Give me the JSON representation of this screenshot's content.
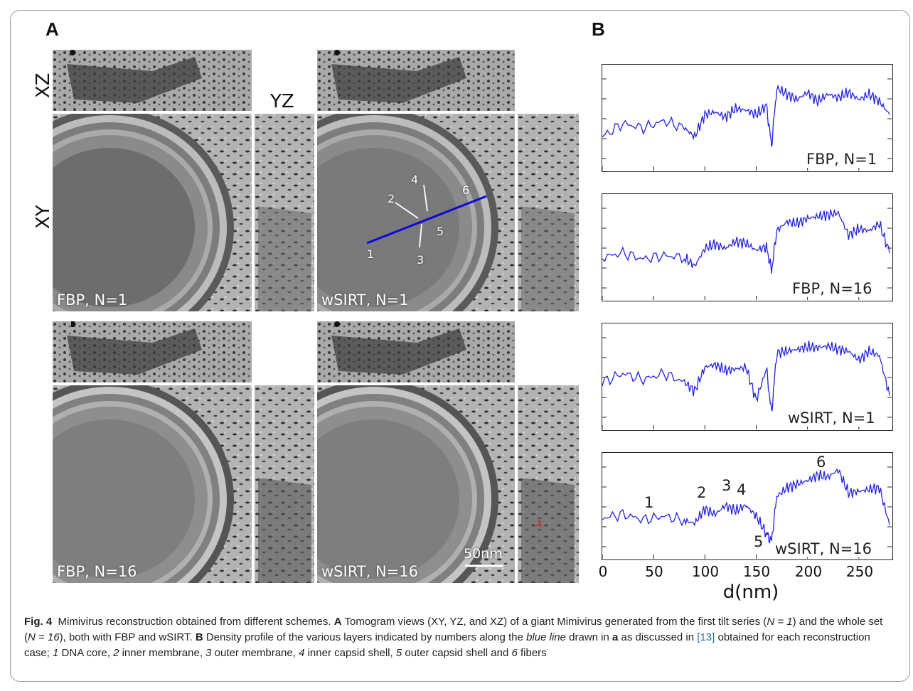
{
  "panel_a": {
    "letter": "A",
    "axis_xz": "XZ",
    "axis_yz": "YZ",
    "axis_xy": "XY",
    "label_fbp1": "FBP, N=1",
    "label_wsirt1": "wSIRT, N=1",
    "label_fbp16": "FBP, N=16",
    "label_wsirt16": "wSIRT, N=16",
    "scale_bar": "50nm",
    "markers": [
      "1",
      "2",
      "3",
      "4",
      "5",
      "6"
    ]
  },
  "panel_b": {
    "letter": "B",
    "plot_labels": [
      "FBP, N=1",
      "FBP, N=16",
      "wSIRT, N=1",
      "wSIRT, N=16"
    ],
    "peak_labels": [
      "1",
      "2",
      "3",
      "4",
      "5",
      "6"
    ],
    "xlabel": "d(nm)",
    "xticks": [
      "0",
      "50",
      "100",
      "150",
      "200",
      "250"
    ]
  },
  "chart_data": {
    "type": "line",
    "xlabel": "d(nm)",
    "xlim": [
      0,
      282
    ],
    "xticks": [
      0,
      50,
      100,
      150,
      200,
      250
    ],
    "series_color": "#2323e0",
    "series": [
      {
        "name": "FBP, N=1",
        "x": [
          0,
          20,
          40,
          60,
          80,
          90,
          100,
          110,
          120,
          130,
          140,
          150,
          160,
          165,
          170,
          180,
          190,
          200,
          210,
          220,
          230,
          240,
          250,
          260,
          270,
          280
        ],
        "values": [
          0.3,
          0.45,
          0.4,
          0.48,
          0.4,
          0.3,
          0.55,
          0.58,
          0.52,
          0.62,
          0.6,
          0.55,
          0.65,
          0.2,
          0.85,
          0.78,
          0.72,
          0.8,
          0.7,
          0.78,
          0.74,
          0.8,
          0.72,
          0.78,
          0.7,
          0.55
        ]
      },
      {
        "name": "FBP, N=16",
        "x": [
          0,
          20,
          40,
          60,
          80,
          90,
          100,
          110,
          120,
          130,
          140,
          150,
          160,
          165,
          170,
          180,
          190,
          200,
          210,
          220,
          230,
          240,
          250,
          260,
          270,
          280
        ],
        "values": [
          0.4,
          0.45,
          0.38,
          0.42,
          0.4,
          0.3,
          0.5,
          0.55,
          0.5,
          0.58,
          0.56,
          0.48,
          0.52,
          0.25,
          0.7,
          0.8,
          0.78,
          0.84,
          0.86,
          0.88,
          0.9,
          0.65,
          0.72,
          0.7,
          0.78,
          0.45
        ]
      },
      {
        "name": "wSIRT, N=1",
        "x": [
          0,
          20,
          40,
          60,
          80,
          90,
          100,
          110,
          120,
          130,
          140,
          150,
          160,
          165,
          170,
          180,
          190,
          200,
          210,
          220,
          230,
          240,
          250,
          260,
          270,
          280
        ],
        "values": [
          0.45,
          0.55,
          0.48,
          0.55,
          0.45,
          0.35,
          0.62,
          0.65,
          0.58,
          0.6,
          0.62,
          0.25,
          0.6,
          0.1,
          0.78,
          0.8,
          0.82,
          0.85,
          0.84,
          0.86,
          0.82,
          0.8,
          0.7,
          0.8,
          0.75,
          0.3
        ]
      },
      {
        "name": "wSIRT, N=16",
        "x": [
          0,
          20,
          40,
          60,
          80,
          90,
          100,
          110,
          120,
          130,
          140,
          150,
          160,
          165,
          170,
          180,
          190,
          200,
          210,
          220,
          230,
          240,
          250,
          260,
          270,
          280
        ],
        "values": [
          0.38,
          0.42,
          0.36,
          0.4,
          0.35,
          0.32,
          0.48,
          0.42,
          0.52,
          0.46,
          0.52,
          0.4,
          0.2,
          0.12,
          0.62,
          0.72,
          0.76,
          0.8,
          0.86,
          0.84,
          0.92,
          0.66,
          0.68,
          0.7,
          0.72,
          0.3
        ]
      }
    ],
    "annotations": [
      {
        "text": "1",
        "x": 45
      },
      {
        "text": "2",
        "x": 97
      },
      {
        "text": "3",
        "x": 124
      },
      {
        "text": "4",
        "x": 138
      },
      {
        "text": "5",
        "x": 152
      },
      {
        "text": "6",
        "x": 218
      }
    ]
  },
  "caption": {
    "fig_label": "Fig. 4",
    "title": "Mimivirus reconstruction obtained from different schemes.",
    "a_letter": "A",
    "part_a": "Tomogram views (XY, YZ, and XZ) of a giant Mimivirus generated from the first tilt series (",
    "n1": "N = 1",
    "part_a2": ") and the whole set (",
    "n16": "N = 16",
    "part_a3": "), both with FBP and wSIRT.",
    "b_letter": "B",
    "part_b": "Density profile of the various layers indicated by numbers along the",
    "blue_line": "blue line",
    "part_b2": "drawn in",
    "a_ref": "a",
    "part_b3": "as discussed in",
    "ref": "[13]",
    "part_b4": "obtained for each reconstruction case;",
    "legend_items": [
      {
        "num": "1",
        "text": "DNA core,"
      },
      {
        "num": "2",
        "text": "inner membrane,"
      },
      {
        "num": "3",
        "text": "outer membrane,"
      },
      {
        "num": "4",
        "text": "inner capsid shell,"
      },
      {
        "num": "5",
        "text": "outer capsid shell and"
      },
      {
        "num": "6",
        "text": "fibers"
      }
    ]
  }
}
